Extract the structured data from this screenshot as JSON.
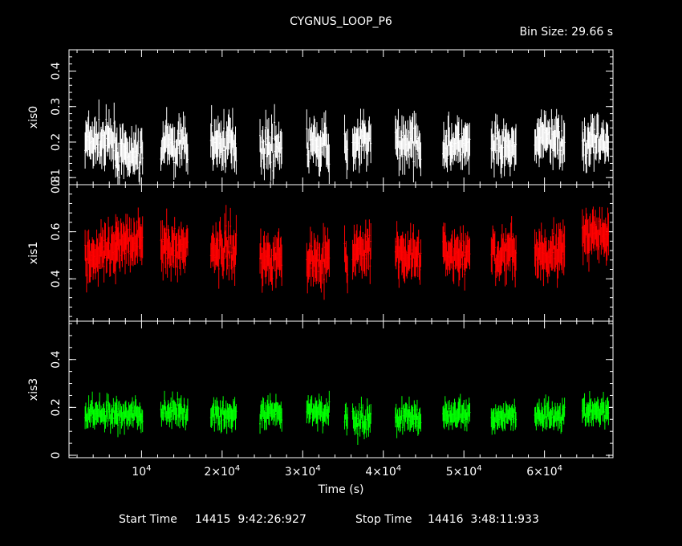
{
  "title": "CYGNUS_LOOP_P6",
  "bin_size": "Bin Size: 29.66 s",
  "footer": {
    "start_label": "Start Time",
    "start_value": "14415  9:42:26:927",
    "stop_label": "Stop Time",
    "stop_value": "14416  3:48:11:933"
  },
  "chart_data": {
    "type": "scatter",
    "xlabel": "Time (s)",
    "x_range": [
      1000,
      68500
    ],
    "x_ticks": [
      {
        "value": 10000,
        "label": "10",
        "sup": "4"
      },
      {
        "value": 20000,
        "label": "2×10",
        "sup": "4"
      },
      {
        "value": 30000,
        "label": "3×10",
        "sup": "4"
      },
      {
        "value": 40000,
        "label": "4×10",
        "sup": "4"
      },
      {
        "value": 50000,
        "label": "5×10",
        "sup": "4"
      },
      {
        "value": 60000,
        "label": "6×10",
        "sup": "4"
      }
    ],
    "segments": [
      [
        3000,
        7000
      ],
      [
        6800,
        10200
      ],
      [
        12400,
        15800
      ],
      [
        18600,
        21800
      ],
      [
        24700,
        27400
      ],
      [
        30500,
        33300
      ],
      [
        35200,
        35600
      ],
      [
        36200,
        38500
      ],
      [
        41500,
        44700
      ],
      [
        47400,
        50800
      ],
      [
        53400,
        56500
      ],
      [
        58800,
        62500
      ],
      [
        64700,
        68000
      ]
    ],
    "panels": [
      {
        "name": "xis0",
        "color": "#ffffff",
        "ylim": [
          0.08,
          0.46
        ],
        "yticks": [
          0.1,
          0.2,
          0.3,
          0.4
        ],
        "ytick_labels": [
          "0.1",
          "0.2",
          "0.3",
          "0.4"
        ],
        "segment_means": [
          0.2,
          0.16,
          0.19,
          0.2,
          0.19,
          0.19,
          0.17,
          0.2,
          0.2,
          0.19,
          0.18,
          0.21,
          0.2
        ],
        "noise": 0.045
      },
      {
        "name": "xis1",
        "color": "#ff0000",
        "ylim": [
          0.22,
          0.8
        ],
        "yticks": [
          0.4,
          0.6,
          0.8
        ],
        "ytick_labels": [
          "0.4",
          "0.6",
          "0.8"
        ],
        "segment_means": [
          0.5,
          0.57,
          0.53,
          0.53,
          0.49,
          0.49,
          0.48,
          0.51,
          0.5,
          0.5,
          0.5,
          0.52,
          0.58
        ],
        "noise": 0.07
      },
      {
        "name": "xis3",
        "color": "#00ff00",
        "ylim": [
          -0.01,
          0.56
        ],
        "yticks": [
          0,
          0.2,
          0.4
        ],
        "ytick_labels": [
          "0",
          "0.2",
          "0.4"
        ],
        "segment_means": [
          0.17,
          0.17,
          0.18,
          0.17,
          0.17,
          0.18,
          0.17,
          0.15,
          0.16,
          0.17,
          0.16,
          0.17,
          0.18
        ],
        "noise": 0.04
      }
    ]
  }
}
